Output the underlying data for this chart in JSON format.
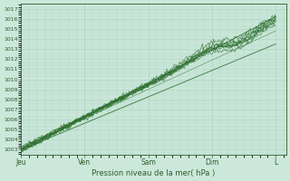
{
  "title": "",
  "xlabel": "Pression niveau de la mer( hPa )",
  "ylabel": "",
  "ylim": [
    1002.5,
    1017.5
  ],
  "yticks": [
    1003,
    1004,
    1005,
    1006,
    1007,
    1008,
    1009,
    1010,
    1011,
    1012,
    1013,
    1014,
    1015,
    1016,
    1017
  ],
  "day_labels": [
    "Jeu",
    "Ven",
    "Sam",
    "Dim",
    "L"
  ],
  "day_positions": [
    0,
    24,
    48,
    72,
    96
  ],
  "xlim": [
    0,
    100
  ],
  "bg_color": "#cce8da",
  "grid_color": "#a8cfc0",
  "line_color": "#2d6e2d",
  "text_color": "#2d5e2d",
  "n_points": 300
}
